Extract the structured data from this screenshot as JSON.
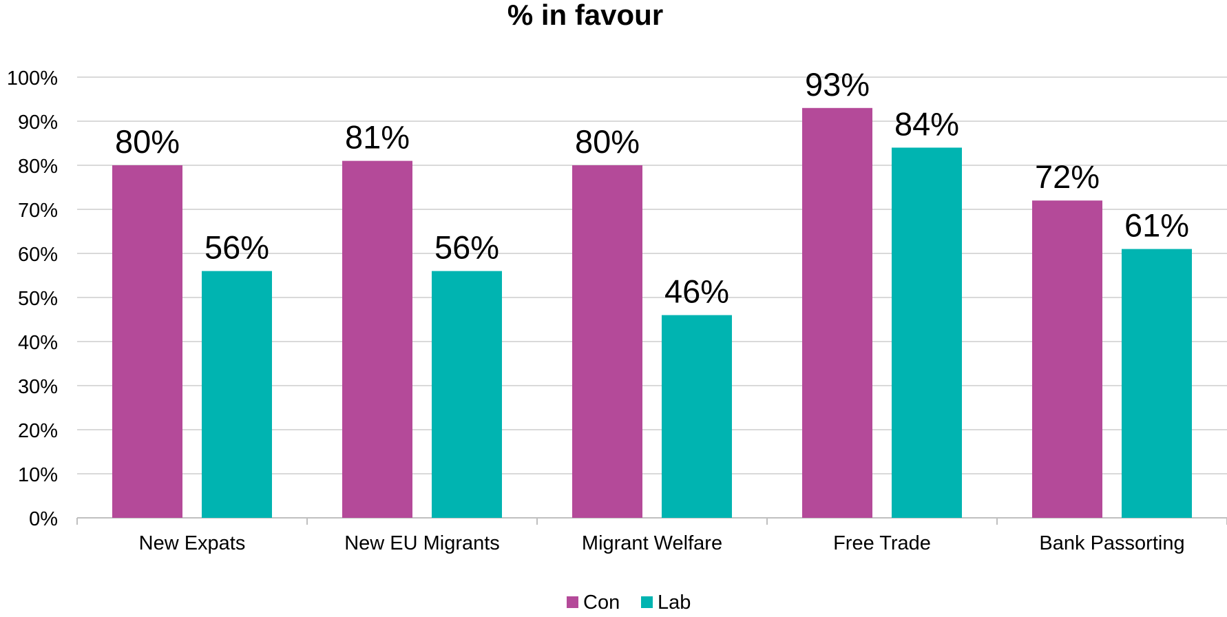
{
  "chart_data": {
    "type": "bar",
    "title": "% in favour",
    "categories": [
      "New Expats",
      "New EU Migrants",
      "Migrant Welfare",
      "Free Trade",
      "Bank Passorting"
    ],
    "series": [
      {
        "name": "Con",
        "values": [
          80,
          81,
          80,
          93,
          72
        ],
        "labels": [
          "80%",
          "81%",
          "80%",
          "93%",
          "72%"
        ],
        "color": "#b44a99"
      },
      {
        "name": "Lab",
        "values": [
          56,
          56,
          46,
          84,
          61
        ],
        "labels": [
          "56%",
          "56%",
          "46%",
          "84%",
          "61%"
        ],
        "color": "#00b4b1"
      }
    ],
    "ylim": [
      0,
      100
    ],
    "yticks": [
      0,
      10,
      20,
      30,
      40,
      50,
      60,
      70,
      80,
      90,
      100
    ],
    "ytick_labels": [
      "0%",
      "10%",
      "20%",
      "30%",
      "40%",
      "50%",
      "60%",
      "70%",
      "80%",
      "90%",
      "100%"
    ],
    "grid": true,
    "legend": "bottom",
    "colors": {
      "gridline": "#d9d9d9",
      "axis": "#bfbfbf",
      "text": "#000000"
    }
  }
}
